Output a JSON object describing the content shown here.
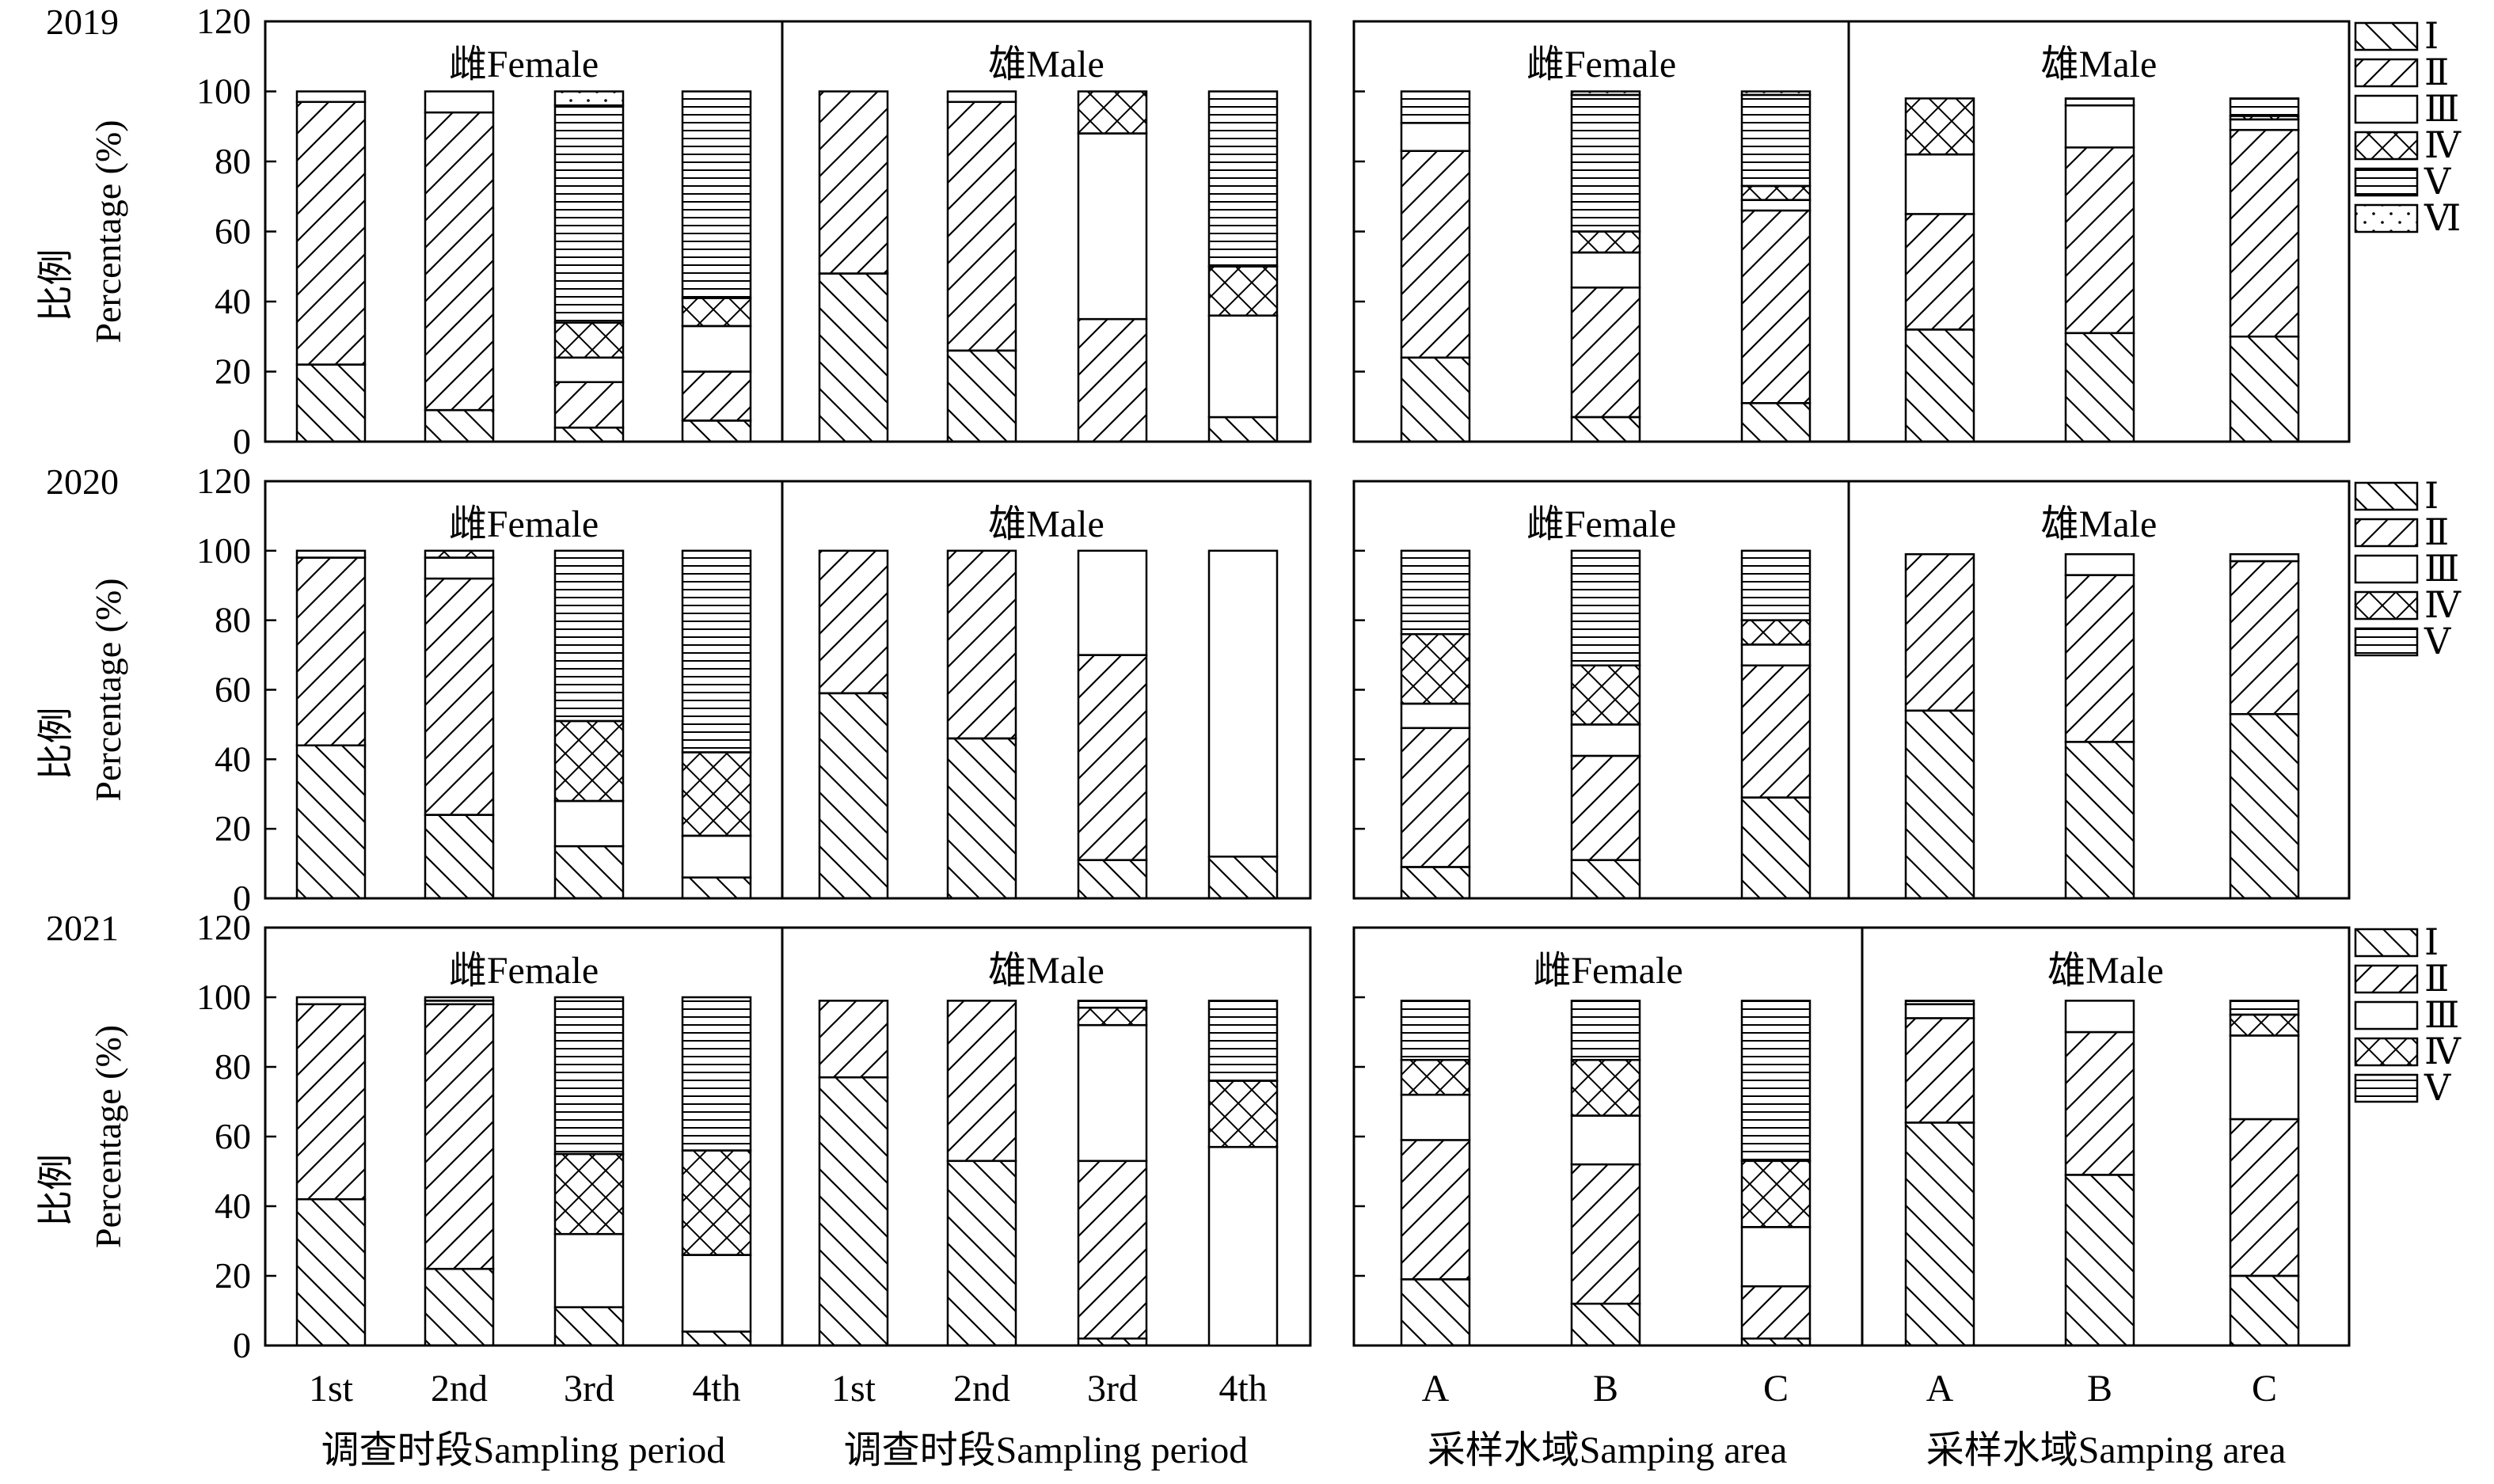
{
  "ylabel_cn": "比例",
  "ylabel_en": "Percentage (%)",
  "stage_labels": [
    "Ⅰ",
    "Ⅱ",
    "Ⅲ",
    "Ⅳ",
    "Ⅴ",
    "Ⅵ"
  ],
  "chart_data": [
    {
      "type": "bar",
      "stacked": true,
      "year": "2019",
      "ylim": [
        0,
        120
      ],
      "yticks": [
        "0",
        "20",
        "40",
        "60",
        "80",
        "100",
        "120"
      ],
      "xlabel": "调查时段Sampling period",
      "groups": [
        {
          "label": "雌Female",
          "categories": [
            "1st",
            "2nd",
            "3rd",
            "4th"
          ],
          "series": [
            {
              "name": "Ⅰ",
              "values": [
                22,
                9,
                4,
                6
              ]
            },
            {
              "name": "Ⅱ",
              "values": [
                75,
                85,
                13,
                14
              ]
            },
            {
              "name": "Ⅲ",
              "values": [
                3,
                6,
                7,
                13
              ]
            },
            {
              "name": "Ⅳ",
              "values": [
                0,
                0,
                10,
                8
              ]
            },
            {
              "name": "Ⅴ",
              "values": [
                0,
                0,
                62,
                59
              ]
            },
            {
              "name": "Ⅵ",
              "values": [
                0,
                0,
                4,
                0
              ]
            }
          ]
        },
        {
          "label": "雄Male",
          "categories": [
            "1st",
            "2nd",
            "3rd",
            "4th"
          ],
          "series": [
            {
              "name": "Ⅰ",
              "values": [
                48,
                26,
                0,
                7
              ]
            },
            {
              "name": "Ⅱ",
              "values": [
                52,
                71,
                35,
                0
              ]
            },
            {
              "name": "Ⅲ",
              "values": [
                0,
                3,
                53,
                29
              ]
            },
            {
              "name": "Ⅳ",
              "values": [
                0,
                0,
                12,
                14
              ]
            },
            {
              "name": "Ⅴ",
              "values": [
                0,
                0,
                0,
                50
              ]
            },
            {
              "name": "Ⅵ",
              "values": [
                0,
                0,
                0,
                0
              ]
            }
          ]
        }
      ]
    },
    {
      "type": "bar",
      "stacked": true,
      "year": "2019",
      "ylim": [
        0,
        120
      ],
      "xlabel": "采样水域Samping area",
      "groups": [
        {
          "label": "雌Female",
          "categories": [
            "A",
            "B",
            "C"
          ],
          "series": [
            {
              "name": "Ⅰ",
              "values": [
                24,
                7,
                11
              ]
            },
            {
              "name": "Ⅱ",
              "values": [
                59,
                37,
                55
              ]
            },
            {
              "name": "Ⅲ",
              "values": [
                8,
                10,
                3
              ]
            },
            {
              "name": "Ⅳ",
              "values": [
                0,
                6,
                4
              ]
            },
            {
              "name": "Ⅴ",
              "values": [
                9,
                39,
                26
              ]
            },
            {
              "name": "Ⅵ",
              "values": [
                0,
                1,
                1
              ]
            }
          ]
        },
        {
          "label": "雄Male",
          "categories": [
            "A",
            "B",
            "C"
          ],
          "series": [
            {
              "name": "Ⅰ",
              "values": [
                32,
                31,
                30
              ]
            },
            {
              "name": "Ⅱ",
              "values": [
                33,
                53,
                59
              ]
            },
            {
              "name": "Ⅲ",
              "values": [
                17,
                12,
                3
              ]
            },
            {
              "name": "Ⅳ",
              "values": [
                16,
                0,
                1
              ]
            },
            {
              "name": "Ⅴ",
              "values": [
                0,
                2,
                5
              ]
            },
            {
              "name": "Ⅵ",
              "values": [
                0,
                0,
                0
              ]
            }
          ]
        }
      ]
    },
    {
      "type": "bar",
      "stacked": true,
      "year": "2020",
      "ylim": [
        0,
        120
      ],
      "yticks": [
        "0",
        "20",
        "40",
        "60",
        "80",
        "100",
        "120"
      ],
      "xlabel": "调查时段Sampling period",
      "groups": [
        {
          "label": "雌Female",
          "categories": [
            "1st",
            "2nd",
            "3rd",
            "4th"
          ],
          "series": [
            {
              "name": "Ⅰ",
              "values": [
                44,
                24,
                15,
                6
              ]
            },
            {
              "name": "Ⅱ",
              "values": [
                54,
                68,
                0,
                0
              ]
            },
            {
              "name": "Ⅲ",
              "values": [
                0,
                6,
                13,
                12
              ]
            },
            {
              "name": "Ⅳ",
              "values": [
                0,
                2,
                23,
                24
              ]
            },
            {
              "name": "Ⅴ",
              "values": [
                2,
                0,
                49,
                58
              ]
            }
          ]
        },
        {
          "label": "雄Male",
          "categories": [
            "1st",
            "2nd",
            "3rd",
            "4th"
          ],
          "series": [
            {
              "name": "Ⅰ",
              "values": [
                59,
                46,
                11,
                12
              ]
            },
            {
              "name": "Ⅱ",
              "values": [
                41,
                54,
                59,
                0
              ]
            },
            {
              "name": "Ⅲ",
              "values": [
                0,
                0,
                30,
                88
              ]
            },
            {
              "name": "Ⅳ",
              "values": [
                0,
                0,
                0,
                0
              ]
            },
            {
              "name": "Ⅴ",
              "values": [
                0,
                0,
                0,
                0
              ]
            }
          ]
        }
      ]
    },
    {
      "type": "bar",
      "stacked": true,
      "year": "2020",
      "ylim": [
        0,
        120
      ],
      "xlabel": "采样水域Samping area",
      "groups": [
        {
          "label": "雌Female",
          "categories": [
            "A",
            "B",
            "C"
          ],
          "series": [
            {
              "name": "Ⅰ",
              "values": [
                9,
                11,
                29
              ]
            },
            {
              "name": "Ⅱ",
              "values": [
                40,
                30,
                38
              ]
            },
            {
              "name": "Ⅲ",
              "values": [
                7,
                9,
                6
              ]
            },
            {
              "name": "Ⅳ",
              "values": [
                20,
                17,
                7
              ]
            },
            {
              "name": "Ⅴ",
              "values": [
                24,
                33,
                20
              ]
            }
          ]
        },
        {
          "label": "雄Male",
          "categories": [
            "A",
            "B",
            "C"
          ],
          "series": [
            {
              "name": "Ⅰ",
              "values": [
                54,
                45,
                53
              ]
            },
            {
              "name": "Ⅱ",
              "values": [
                45,
                48,
                44
              ]
            },
            {
              "name": "Ⅲ",
              "values": [
                0,
                6,
                2
              ]
            },
            {
              "name": "Ⅳ",
              "values": [
                0,
                0,
                0
              ]
            },
            {
              "name": "Ⅴ",
              "values": [
                0,
                0,
                0
              ]
            }
          ]
        }
      ]
    },
    {
      "type": "bar",
      "stacked": true,
      "year": "2021",
      "ylim": [
        0,
        120
      ],
      "yticks": [
        "0",
        "20",
        "40",
        "60",
        "80",
        "100",
        "120"
      ],
      "xlabel": "调查时段Sampling period",
      "groups": [
        {
          "label": "雌Female",
          "categories": [
            "1st",
            "2nd",
            "3rd",
            "4th"
          ],
          "series": [
            {
              "name": "Ⅰ",
              "values": [
                42,
                22,
                11,
                4
              ]
            },
            {
              "name": "Ⅱ",
              "values": [
                56,
                76,
                0,
                0
              ]
            },
            {
              "name": "Ⅲ",
              "values": [
                2,
                1,
                21,
                22
              ]
            },
            {
              "name": "Ⅳ",
              "values": [
                0,
                0,
                23,
                30
              ]
            },
            {
              "name": "Ⅴ",
              "values": [
                0,
                1,
                45,
                44
              ]
            }
          ]
        },
        {
          "label": "雄Male",
          "categories": [
            "1st",
            "2nd",
            "3rd",
            "4th"
          ],
          "series": [
            {
              "name": "Ⅰ",
              "values": [
                77,
                53,
                2,
                0
              ]
            },
            {
              "name": "Ⅱ",
              "values": [
                22,
                46,
                51,
                0
              ]
            },
            {
              "name": "Ⅲ",
              "values": [
                0,
                0,
                39,
                57
              ]
            },
            {
              "name": "Ⅳ",
              "values": [
                0,
                0,
                5,
                19
              ]
            },
            {
              "name": "Ⅴ",
              "values": [
                0,
                0,
                2,
                23
              ]
            }
          ]
        }
      ]
    },
    {
      "type": "bar",
      "stacked": true,
      "year": "2021",
      "ylim": [
        0,
        120
      ],
      "xlabel": "采样水域Samping area",
      "groups": [
        {
          "label": "雌Female",
          "categories": [
            "A",
            "B",
            "C"
          ],
          "series": [
            {
              "name": "Ⅰ",
              "values": [
                19,
                12,
                2
              ]
            },
            {
              "name": "Ⅱ",
              "values": [
                40,
                40,
                15
              ]
            },
            {
              "name": "Ⅲ",
              "values": [
                13,
                14,
                17
              ]
            },
            {
              "name": "Ⅳ",
              "values": [
                10,
                16,
                19
              ]
            },
            {
              "name": "Ⅴ",
              "values": [
                17,
                17,
                46
              ]
            }
          ]
        },
        {
          "label": "雄Male",
          "categories": [
            "A",
            "B",
            "C"
          ],
          "series": [
            {
              "name": "Ⅰ",
              "values": [
                64,
                49,
                20
              ]
            },
            {
              "name": "Ⅱ",
              "values": [
                30,
                41,
                45
              ]
            },
            {
              "name": "Ⅲ",
              "values": [
                4,
                9,
                24
              ]
            },
            {
              "name": "Ⅳ",
              "values": [
                0,
                0,
                6
              ]
            },
            {
              "name": "Ⅴ",
              "values": [
                1,
                0,
                4
              ]
            }
          ]
        }
      ]
    }
  ],
  "legends": [
    [
      "Ⅰ",
      "Ⅱ",
      "Ⅲ",
      "Ⅳ",
      "Ⅴ",
      "Ⅵ"
    ],
    [
      "Ⅰ",
      "Ⅱ",
      "Ⅲ",
      "Ⅳ",
      "Ⅴ"
    ],
    [
      "Ⅰ",
      "Ⅱ",
      "Ⅲ",
      "Ⅳ",
      "Ⅴ"
    ]
  ]
}
